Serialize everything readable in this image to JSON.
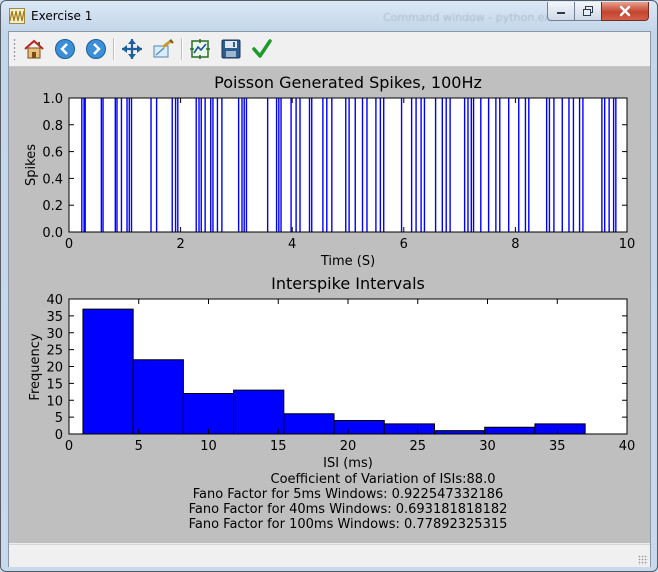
{
  "window": {
    "title": "Exercise 1",
    "background_hint": "Command window - python.exe",
    "controls": {
      "minimize": "minimize",
      "maximize": "maximize",
      "close": "close"
    }
  },
  "toolbar": {
    "buttons": [
      {
        "name": "home-button",
        "icon": "home-icon"
      },
      {
        "name": "back-button",
        "icon": "back-arrow-icon"
      },
      {
        "name": "forward-button",
        "icon": "forward-arrow-icon"
      },
      {
        "name": "pan-button",
        "icon": "pan-arrows-icon"
      },
      {
        "name": "zoom-button",
        "icon": "zoom-rect-icon"
      },
      {
        "name": "subplots-button",
        "icon": "configure-subplots-icon"
      },
      {
        "name": "save-button",
        "icon": "floppy-save-icon"
      },
      {
        "name": "edit-button",
        "icon": "checkmark-icon"
      }
    ]
  },
  "colors": {
    "bar": "#0000ff",
    "figure_bg": "#bfbfbf",
    "axes_bg": "#ffffff"
  },
  "chart_data": [
    {
      "type": "line",
      "title": "Poisson Generated Spikes, 100Hz",
      "xlabel": "Time (S)",
      "ylabel": "Spikes",
      "xlim": [
        0,
        10
      ],
      "ylim": [
        0,
        1
      ],
      "xticks": [
        "0",
        "2",
        "4",
        "6",
        "8",
        "10"
      ],
      "yticks": [
        "0.0",
        "0.2",
        "0.4",
        "0.6",
        "0.8",
        "1.0"
      ],
      "grid": false,
      "spike_times": [
        0.23,
        0.27,
        0.29,
        0.58,
        0.61,
        0.83,
        0.86,
        0.94,
        1.04,
        1.08,
        1.12,
        1.47,
        1.57,
        1.85,
        1.91,
        1.95,
        2.28,
        2.33,
        2.37,
        2.44,
        2.54,
        2.58,
        2.66,
        2.74,
        3.04,
        3.1,
        3.14,
        3.18,
        3.56,
        3.72,
        3.76,
        3.8,
        3.98,
        4.07,
        4.14,
        4.31,
        4.35,
        4.55,
        4.62,
        4.71,
        4.96,
        5.02,
        5.13,
        5.26,
        5.34,
        5.5,
        5.58,
        5.64,
        5.96,
        6.14,
        6.22,
        6.31,
        6.37,
        6.57,
        6.69,
        6.76,
        6.83,
        7.09,
        7.15,
        7.21,
        7.25,
        7.38,
        7.52,
        7.65,
        7.72,
        7.88,
        8.06,
        8.18,
        8.24,
        8.56,
        8.61,
        8.69,
        8.84,
        8.96,
        9.04,
        9.15,
        9.21,
        9.55,
        9.6,
        9.68,
        9.76,
        9.8
      ]
    },
    {
      "type": "bar",
      "title": "Interspike Intervals",
      "xlabel": "ISI (ms)",
      "ylabel": "Frequency",
      "xlim": [
        0,
        40
      ],
      "ylim": [
        0,
        40
      ],
      "xticks": [
        "0",
        "5",
        "10",
        "15",
        "20",
        "25",
        "30",
        "35",
        "40"
      ],
      "yticks": [
        "0",
        "5",
        "10",
        "15",
        "20",
        "25",
        "30",
        "35",
        "40"
      ],
      "bin_edges": [
        1.0,
        4.6,
        8.2,
        11.8,
        15.4,
        19.0,
        22.6,
        26.2,
        29.8,
        33.4,
        37.0
      ],
      "values": [
        37,
        22,
        12,
        13,
        6,
        4,
        3,
        1,
        2,
        3
      ],
      "grid": false
    }
  ],
  "stats": [
    "Coefficient of Variation of ISIs:88.0",
    "Fano Factor for 5ms Windows: 0.922547332186",
    "Fano Factor for 40ms Windows: 0.693181818182",
    "Fano Factor for 100ms Windows: 0.77892325315"
  ]
}
